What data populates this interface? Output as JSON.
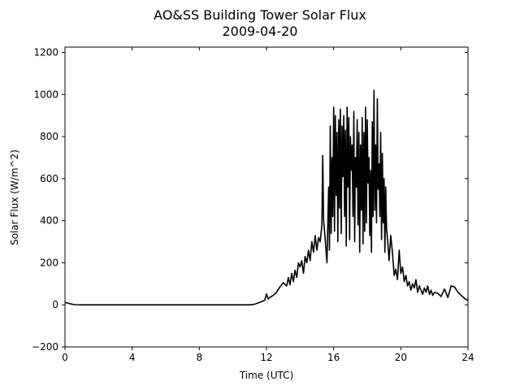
{
  "chart_data": {
    "type": "line",
    "title": "AO&SS Building Tower Solar Flux",
    "subtitle": "2009-04-20",
    "xlabel": "Time (UTC)",
    "ylabel": "Solar Flux (W/m^2)",
    "xlim": [
      0,
      24
    ],
    "ylim": [
      -200,
      1225
    ],
    "xticks": [
      0,
      4,
      8,
      12,
      16,
      20,
      24
    ],
    "yticks": [
      -200,
      0,
      200,
      400,
      600,
      800,
      1000,
      1200
    ],
    "ytick_labels": [
      "−200",
      "0",
      "200",
      "400",
      "600",
      "800",
      "1000",
      "1200"
    ],
    "grid": false,
    "legend": "none",
    "series": [
      {
        "color": "#000000",
        "x": [
          0,
          0.3,
          0.6,
          1,
          2,
          4,
          6,
          8,
          10,
          11,
          11.3,
          11.6,
          11.9,
          12.0,
          12.1,
          12.2,
          12.4,
          12.6,
          12.8,
          13.0,
          13.2,
          13.3,
          13.4,
          13.5,
          13.6,
          13.7,
          13.8,
          13.9,
          14.0,
          14.1,
          14.2,
          14.3,
          14.4,
          14.5,
          14.6,
          14.7,
          14.8,
          14.9,
          15.0,
          15.1,
          15.2,
          15.3,
          15.35,
          15.4,
          15.5,
          15.6,
          15.7,
          15.75,
          15.8,
          15.85,
          15.9,
          15.95,
          16.0,
          16.05,
          16.1,
          16.15,
          16.2,
          16.25,
          16.3,
          16.35,
          16.4,
          16.45,
          16.5,
          16.55,
          16.6,
          16.65,
          16.7,
          16.75,
          16.8,
          16.85,
          16.9,
          16.95,
          17.0,
          17.05,
          17.1,
          17.15,
          17.2,
          17.25,
          17.3,
          17.35,
          17.4,
          17.45,
          17.5,
          17.55,
          17.6,
          17.65,
          17.7,
          17.75,
          17.8,
          17.85,
          17.9,
          17.95,
          18.0,
          18.05,
          18.1,
          18.15,
          18.2,
          18.25,
          18.3,
          18.35,
          18.4,
          18.45,
          18.5,
          18.55,
          18.6,
          18.65,
          18.7,
          18.75,
          18.8,
          18.85,
          18.9,
          18.95,
          19.0,
          19.05,
          19.1,
          19.15,
          19.2,
          19.3,
          19.4,
          19.5,
          19.6,
          19.7,
          19.8,
          19.9,
          20.0,
          20.1,
          20.2,
          20.3,
          20.4,
          20.5,
          20.6,
          20.7,
          20.8,
          20.9,
          21.0,
          21.1,
          21.2,
          21.3,
          21.4,
          21.5,
          21.6,
          21.7,
          21.8,
          21.9,
          22.0,
          22.2,
          22.4,
          22.6,
          22.8,
          23.0,
          23.2,
          23.4,
          23.6,
          23.8,
          24.0
        ],
        "y": [
          12,
          5,
          1,
          0,
          0,
          0,
          0,
          0,
          0,
          0,
          3,
          12,
          22,
          52,
          28,
          35,
          45,
          60,
          85,
          105,
          90,
          130,
          95,
          150,
          110,
          165,
          130,
          200,
          180,
          210,
          150,
          230,
          200,
          260,
          210,
          300,
          250,
          330,
          260,
          320,
          300,
          380,
          710,
          400,
          310,
          200,
          560,
          260,
          850,
          340,
          700,
          420,
          940,
          350,
          900,
          520,
          820,
          300,
          880,
          460,
          930,
          340,
          850,
          610,
          900,
          420,
          830,
          280,
          940,
          560,
          890,
          310,
          800,
          640,
          760,
          420,
          920,
          300,
          700,
          560,
          880,
          380,
          820,
          250,
          760,
          450,
          890,
          290,
          820,
          350,
          940,
          390,
          880,
          580,
          700,
          330,
          640,
          250,
          870,
          420,
          1020,
          450,
          760,
          390,
          980,
          550,
          670,
          420,
          820,
          310,
          720,
          390,
          600,
          250,
          560,
          360,
          320,
          210,
          330,
          250,
          140,
          170,
          120,
          260,
          150,
          180,
          110,
          140,
          90,
          110,
          70,
          100,
          80,
          120,
          60,
          90,
          70,
          50,
          80,
          60,
          90,
          50,
          70,
          45,
          60,
          55,
          40,
          75,
          35,
          90,
          85,
          60,
          45,
          30,
          20
        ]
      }
    ]
  }
}
